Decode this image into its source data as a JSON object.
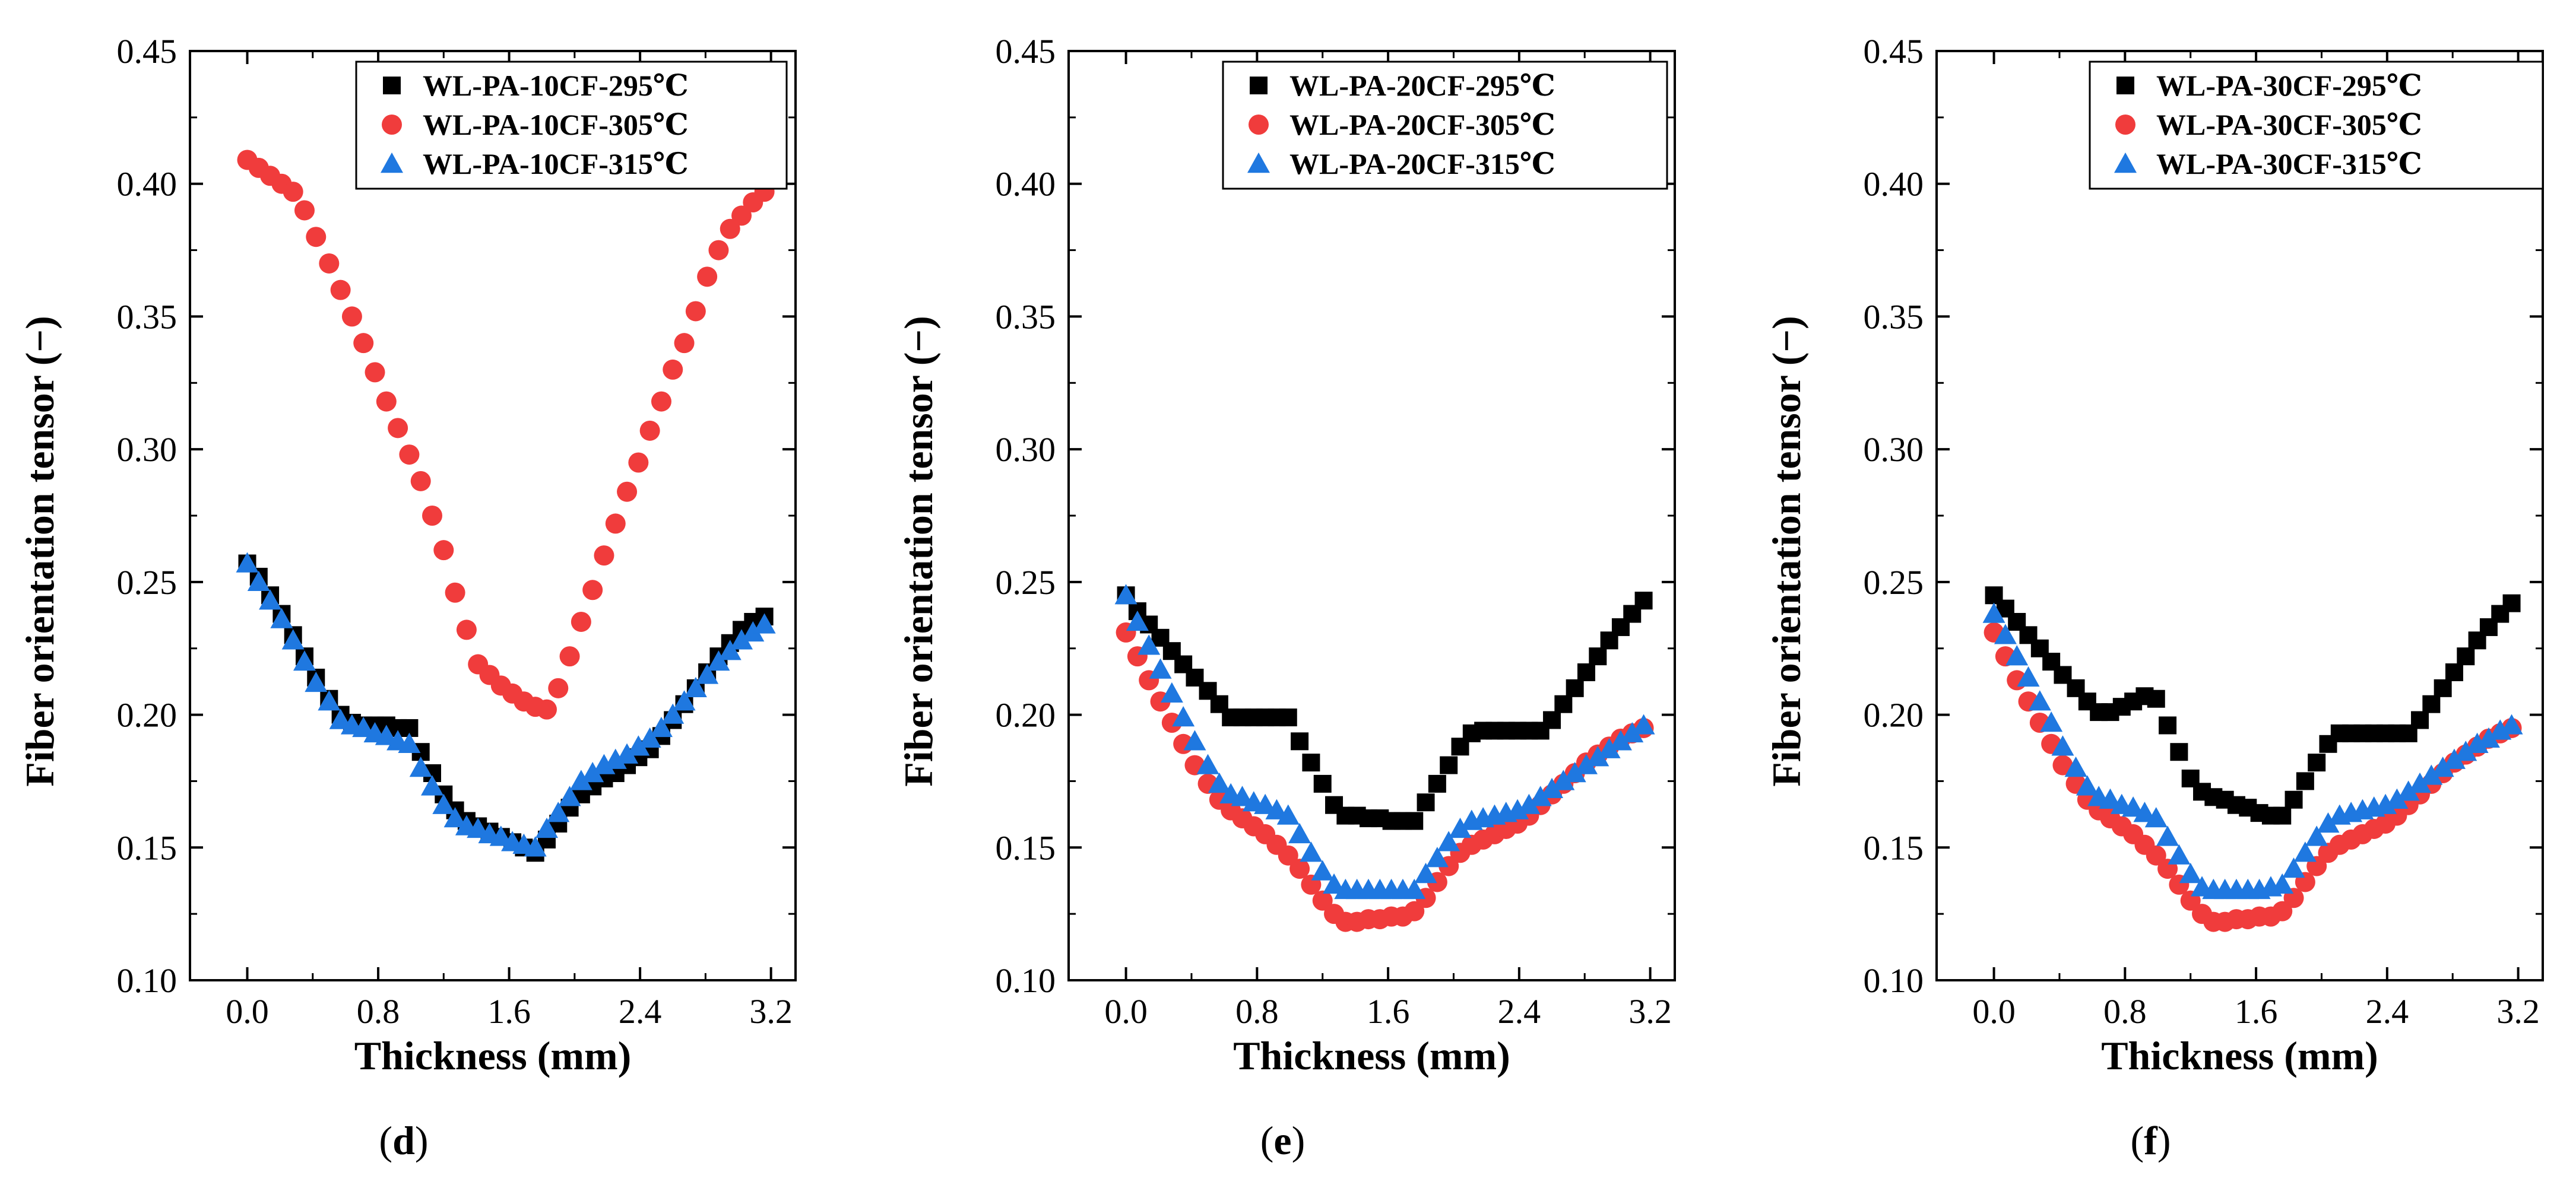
{
  "figure": {
    "degree_symbol": "℃"
  },
  "chart_data": [
    {
      "type": "scatter",
      "panel_label": "d",
      "xlabel": "Thickness (mm)",
      "ylabel": "Fiber orientation tensor (−)",
      "xlim": [
        -0.35,
        3.35
      ],
      "ylim": [
        0.1,
        0.45
      ],
      "xticks": [
        0.0,
        0.8,
        1.6,
        2.4,
        3.2
      ],
      "xtick_labels": [
        "0.0",
        "0.8",
        "1.6",
        "2.4",
        "3.2"
      ],
      "yticks": [
        0.1,
        0.15,
        0.2,
        0.25,
        0.3,
        0.35,
        0.4,
        0.45
      ],
      "ytick_labels": [
        "0.10",
        "0.15",
        "0.20",
        "0.25",
        "0.30",
        "0.35",
        "0.40",
        "0.45"
      ],
      "legend_position": "top-right",
      "series": [
        {
          "name": "WL-PA-10CF-295℃",
          "marker": "square",
          "color": "#000000",
          "x": [
            0.0,
            0.07,
            0.14,
            0.21,
            0.28,
            0.35,
            0.42,
            0.5,
            0.57,
            0.64,
            0.71,
            0.78,
            0.85,
            0.92,
            0.99,
            1.06,
            1.13,
            1.2,
            1.27,
            1.34,
            1.41,
            1.48,
            1.55,
            1.62,
            1.69,
            1.76,
            1.83,
            1.9,
            1.97,
            2.04,
            2.11,
            2.18,
            2.25,
            2.32,
            2.39,
            2.46,
            2.53,
            2.6,
            2.67,
            2.74,
            2.81,
            2.88,
            2.95,
            3.02,
            3.09,
            3.16
          ],
          "y": [
            0.257,
            0.252,
            0.245,
            0.238,
            0.23,
            0.222,
            0.214,
            0.206,
            0.2,
            0.197,
            0.196,
            0.196,
            0.196,
            0.195,
            0.195,
            0.186,
            0.178,
            0.17,
            0.164,
            0.16,
            0.158,
            0.156,
            0.154,
            0.152,
            0.15,
            0.148,
            0.153,
            0.159,
            0.165,
            0.17,
            0.173,
            0.176,
            0.178,
            0.181,
            0.184,
            0.187,
            0.192,
            0.198,
            0.204,
            0.21,
            0.216,
            0.222,
            0.227,
            0.232,
            0.235,
            0.237
          ]
        },
        {
          "name": "WL-PA-10CF-305℃",
          "marker": "circle",
          "color": "#f03c3c",
          "x": [
            0.0,
            0.07,
            0.14,
            0.21,
            0.28,
            0.35,
            0.42,
            0.5,
            0.57,
            0.64,
            0.71,
            0.78,
            0.85,
            0.92,
            0.99,
            1.06,
            1.13,
            1.2,
            1.27,
            1.34,
            1.41,
            1.48,
            1.55,
            1.62,
            1.69,
            1.76,
            1.83,
            1.9,
            1.97,
            2.04,
            2.11,
            2.18,
            2.25,
            2.32,
            2.39,
            2.46,
            2.53,
            2.6,
            2.67,
            2.74,
            2.81,
            2.88,
            2.95,
            3.02,
            3.09,
            3.16
          ],
          "y": [
            0.409,
            0.406,
            0.403,
            0.4,
            0.397,
            0.39,
            0.38,
            0.37,
            0.36,
            0.35,
            0.34,
            0.329,
            0.318,
            0.308,
            0.298,
            0.288,
            0.275,
            0.262,
            0.246,
            0.232,
            0.219,
            0.215,
            0.211,
            0.208,
            0.205,
            0.203,
            0.202,
            0.21,
            0.222,
            0.235,
            0.247,
            0.26,
            0.272,
            0.284,
            0.295,
            0.307,
            0.318,
            0.33,
            0.34,
            0.352,
            0.365,
            0.375,
            0.383,
            0.388,
            0.393,
            0.397
          ]
        },
        {
          "name": "WL-PA-10CF-315℃",
          "marker": "triangle",
          "color": "#1f78e0",
          "x": [
            0.0,
            0.07,
            0.14,
            0.21,
            0.28,
            0.35,
            0.42,
            0.5,
            0.57,
            0.64,
            0.71,
            0.78,
            0.85,
            0.92,
            0.99,
            1.06,
            1.13,
            1.2,
            1.27,
            1.34,
            1.41,
            1.48,
            1.55,
            1.62,
            1.69,
            1.76,
            1.83,
            1.9,
            1.97,
            2.04,
            2.11,
            2.18,
            2.25,
            2.32,
            2.39,
            2.46,
            2.53,
            2.6,
            2.67,
            2.74,
            2.81,
            2.88,
            2.95,
            3.02,
            3.09,
            3.16
          ],
          "y": [
            0.257,
            0.25,
            0.243,
            0.236,
            0.228,
            0.22,
            0.212,
            0.205,
            0.198,
            0.196,
            0.195,
            0.193,
            0.192,
            0.19,
            0.189,
            0.18,
            0.173,
            0.166,
            0.161,
            0.158,
            0.157,
            0.155,
            0.154,
            0.152,
            0.151,
            0.15,
            0.157,
            0.163,
            0.169,
            0.175,
            0.178,
            0.181,
            0.183,
            0.185,
            0.188,
            0.191,
            0.195,
            0.2,
            0.205,
            0.21,
            0.215,
            0.22,
            0.224,
            0.228,
            0.231,
            0.234
          ]
        }
      ]
    },
    {
      "type": "scatter",
      "panel_label": "e",
      "xlabel": "Thickness (mm)",
      "ylabel": "Fiber orientation tensor (−)",
      "xlim": [
        -0.35,
        3.35
      ],
      "ylim": [
        0.1,
        0.45
      ],
      "xticks": [
        0.0,
        0.8,
        1.6,
        2.4,
        3.2
      ],
      "xtick_labels": [
        "0.0",
        "0.8",
        "1.6",
        "2.4",
        "3.2"
      ],
      "yticks": [
        0.1,
        0.15,
        0.2,
        0.25,
        0.3,
        0.35,
        0.4,
        0.45
      ],
      "ytick_labels": [
        "0.10",
        "0.15",
        "0.20",
        "0.25",
        "0.30",
        "0.35",
        "0.40",
        "0.45"
      ],
      "legend_position": "top-right",
      "series": [
        {
          "name": "WL-PA-20CF-295℃",
          "marker": "square",
          "color": "#000000",
          "x": [
            0.0,
            0.07,
            0.14,
            0.21,
            0.28,
            0.35,
            0.42,
            0.5,
            0.57,
            0.64,
            0.71,
            0.78,
            0.85,
            0.92,
            0.99,
            1.06,
            1.13,
            1.2,
            1.27,
            1.34,
            1.41,
            1.48,
            1.55,
            1.62,
            1.69,
            1.76,
            1.83,
            1.9,
            1.97,
            2.04,
            2.11,
            2.18,
            2.25,
            2.32,
            2.39,
            2.46,
            2.53,
            2.6,
            2.67,
            2.74,
            2.81,
            2.88,
            2.95,
            3.02,
            3.09,
            3.16
          ],
          "y": [
            0.245,
            0.239,
            0.234,
            0.229,
            0.224,
            0.219,
            0.214,
            0.209,
            0.204,
            0.199,
            0.199,
            0.199,
            0.199,
            0.199,
            0.199,
            0.19,
            0.182,
            0.174,
            0.166,
            0.162,
            0.162,
            0.161,
            0.161,
            0.16,
            0.16,
            0.16,
            0.167,
            0.174,
            0.181,
            0.188,
            0.193,
            0.194,
            0.194,
            0.194,
            0.194,
            0.194,
            0.194,
            0.198,
            0.204,
            0.21,
            0.216,
            0.222,
            0.228,
            0.233,
            0.238,
            0.243
          ]
        },
        {
          "name": "WL-PA-20CF-305℃",
          "marker": "circle",
          "color": "#f03c3c",
          "x": [
            0.0,
            0.07,
            0.14,
            0.21,
            0.28,
            0.35,
            0.42,
            0.5,
            0.57,
            0.64,
            0.71,
            0.78,
            0.85,
            0.92,
            0.99,
            1.06,
            1.13,
            1.2,
            1.27,
            1.34,
            1.41,
            1.48,
            1.55,
            1.62,
            1.69,
            1.76,
            1.83,
            1.9,
            1.97,
            2.04,
            2.11,
            2.18,
            2.25,
            2.32,
            2.39,
            2.46,
            2.53,
            2.6,
            2.67,
            2.74,
            2.81,
            2.88,
            2.95,
            3.02,
            3.09,
            3.16
          ],
          "y": [
            0.231,
            0.222,
            0.213,
            0.205,
            0.197,
            0.189,
            0.181,
            0.174,
            0.168,
            0.164,
            0.161,
            0.158,
            0.155,
            0.151,
            0.147,
            0.142,
            0.136,
            0.13,
            0.125,
            0.122,
            0.122,
            0.123,
            0.123,
            0.124,
            0.124,
            0.126,
            0.131,
            0.137,
            0.143,
            0.148,
            0.151,
            0.153,
            0.155,
            0.157,
            0.159,
            0.162,
            0.166,
            0.17,
            0.174,
            0.178,
            0.182,
            0.185,
            0.188,
            0.191,
            0.193,
            0.195
          ]
        },
        {
          "name": "WL-PA-20CF-315℃",
          "marker": "triangle",
          "color": "#1f78e0",
          "x": [
            0.0,
            0.07,
            0.14,
            0.21,
            0.28,
            0.35,
            0.42,
            0.5,
            0.57,
            0.64,
            0.71,
            0.78,
            0.85,
            0.92,
            0.99,
            1.06,
            1.13,
            1.2,
            1.27,
            1.34,
            1.41,
            1.48,
            1.55,
            1.62,
            1.69,
            1.76,
            1.83,
            1.9,
            1.97,
            2.04,
            2.11,
            2.18,
            2.25,
            2.32,
            2.39,
            2.46,
            2.53,
            2.6,
            2.67,
            2.74,
            2.81,
            2.88,
            2.95,
            3.02,
            3.09,
            3.16
          ],
          "y": [
            0.245,
            0.235,
            0.226,
            0.217,
            0.208,
            0.199,
            0.19,
            0.181,
            0.174,
            0.17,
            0.169,
            0.167,
            0.166,
            0.164,
            0.162,
            0.155,
            0.148,
            0.141,
            0.136,
            0.134,
            0.134,
            0.134,
            0.134,
            0.134,
            0.134,
            0.134,
            0.14,
            0.146,
            0.152,
            0.157,
            0.16,
            0.161,
            0.162,
            0.163,
            0.164,
            0.166,
            0.169,
            0.172,
            0.175,
            0.178,
            0.181,
            0.184,
            0.187,
            0.19,
            0.193,
            0.196
          ]
        }
      ]
    },
    {
      "type": "scatter",
      "panel_label": "f",
      "xlabel": "Thickness (mm)",
      "ylabel": "Fiber orientation tensor (−)",
      "xlim": [
        -0.35,
        3.35
      ],
      "ylim": [
        0.1,
        0.45
      ],
      "xticks": [
        0.0,
        0.8,
        1.6,
        2.4,
        3.2
      ],
      "xtick_labels": [
        "0.0",
        "0.8",
        "1.6",
        "2.4",
        "3.2"
      ],
      "yticks": [
        0.1,
        0.15,
        0.2,
        0.25,
        0.3,
        0.35,
        0.4,
        0.45
      ],
      "ytick_labels": [
        "0.10",
        "0.15",
        "0.20",
        "0.25",
        "0.30",
        "0.35",
        "0.40",
        "0.45"
      ],
      "legend_position": "top-right",
      "series": [
        {
          "name": "WL-PA-30CF-295℃",
          "marker": "square",
          "color": "#000000",
          "x": [
            0.0,
            0.07,
            0.14,
            0.21,
            0.28,
            0.35,
            0.42,
            0.5,
            0.57,
            0.64,
            0.71,
            0.78,
            0.85,
            0.92,
            0.99,
            1.06,
            1.13,
            1.2,
            1.27,
            1.34,
            1.41,
            1.48,
            1.55,
            1.62,
            1.69,
            1.76,
            1.83,
            1.9,
            1.97,
            2.04,
            2.11,
            2.18,
            2.25,
            2.32,
            2.39,
            2.46,
            2.53,
            2.6,
            2.67,
            2.74,
            2.81,
            2.88,
            2.95,
            3.02,
            3.09,
            3.16
          ],
          "y": [
            0.245,
            0.24,
            0.235,
            0.23,
            0.225,
            0.22,
            0.215,
            0.21,
            0.205,
            0.201,
            0.201,
            0.203,
            0.205,
            0.207,
            0.206,
            0.196,
            0.186,
            0.176,
            0.171,
            0.169,
            0.168,
            0.166,
            0.165,
            0.163,
            0.162,
            0.162,
            0.168,
            0.175,
            0.182,
            0.189,
            0.193,
            0.193,
            0.193,
            0.193,
            0.193,
            0.193,
            0.193,
            0.198,
            0.204,
            0.21,
            0.216,
            0.222,
            0.228,
            0.233,
            0.238,
            0.242
          ]
        },
        {
          "name": "WL-PA-30CF-305℃",
          "marker": "circle",
          "color": "#f03c3c",
          "x": [
            0.0,
            0.07,
            0.14,
            0.21,
            0.28,
            0.35,
            0.42,
            0.5,
            0.57,
            0.64,
            0.71,
            0.78,
            0.85,
            0.92,
            0.99,
            1.06,
            1.13,
            1.2,
            1.27,
            1.34,
            1.41,
            1.48,
            1.55,
            1.62,
            1.69,
            1.76,
            1.83,
            1.9,
            1.97,
            2.04,
            2.11,
            2.18,
            2.25,
            2.32,
            2.39,
            2.46,
            2.53,
            2.6,
            2.67,
            2.74,
            2.81,
            2.88,
            2.95,
            3.02,
            3.09,
            3.16
          ],
          "y": [
            0.231,
            0.222,
            0.213,
            0.205,
            0.197,
            0.189,
            0.181,
            0.174,
            0.168,
            0.164,
            0.161,
            0.158,
            0.155,
            0.151,
            0.147,
            0.142,
            0.136,
            0.13,
            0.125,
            0.122,
            0.122,
            0.123,
            0.123,
            0.124,
            0.124,
            0.126,
            0.131,
            0.137,
            0.143,
            0.148,
            0.151,
            0.153,
            0.155,
            0.157,
            0.159,
            0.162,
            0.166,
            0.17,
            0.174,
            0.178,
            0.182,
            0.185,
            0.188,
            0.191,
            0.193,
            0.195
          ]
        },
        {
          "name": "WL-PA-30CF-315℃",
          "marker": "triangle",
          "color": "#1f78e0",
          "x": [
            0.0,
            0.07,
            0.14,
            0.21,
            0.28,
            0.35,
            0.42,
            0.5,
            0.57,
            0.64,
            0.71,
            0.78,
            0.85,
            0.92,
            0.99,
            1.06,
            1.13,
            1.2,
            1.27,
            1.34,
            1.41,
            1.48,
            1.55,
            1.62,
            1.69,
            1.76,
            1.83,
            1.9,
            1.97,
            2.04,
            2.11,
            2.18,
            2.25,
            2.32,
            2.39,
            2.46,
            2.53,
            2.6,
            2.67,
            2.74,
            2.81,
            2.88,
            2.95,
            3.02,
            3.09,
            3.16
          ],
          "y": [
            0.238,
            0.23,
            0.222,
            0.214,
            0.205,
            0.197,
            0.188,
            0.18,
            0.173,
            0.169,
            0.168,
            0.166,
            0.165,
            0.163,
            0.161,
            0.154,
            0.147,
            0.14,
            0.135,
            0.134,
            0.134,
            0.134,
            0.134,
            0.134,
            0.135,
            0.136,
            0.142,
            0.148,
            0.154,
            0.159,
            0.162,
            0.163,
            0.164,
            0.165,
            0.166,
            0.168,
            0.171,
            0.174,
            0.177,
            0.18,
            0.183,
            0.186,
            0.189,
            0.191,
            0.194,
            0.196
          ]
        }
      ]
    }
  ]
}
